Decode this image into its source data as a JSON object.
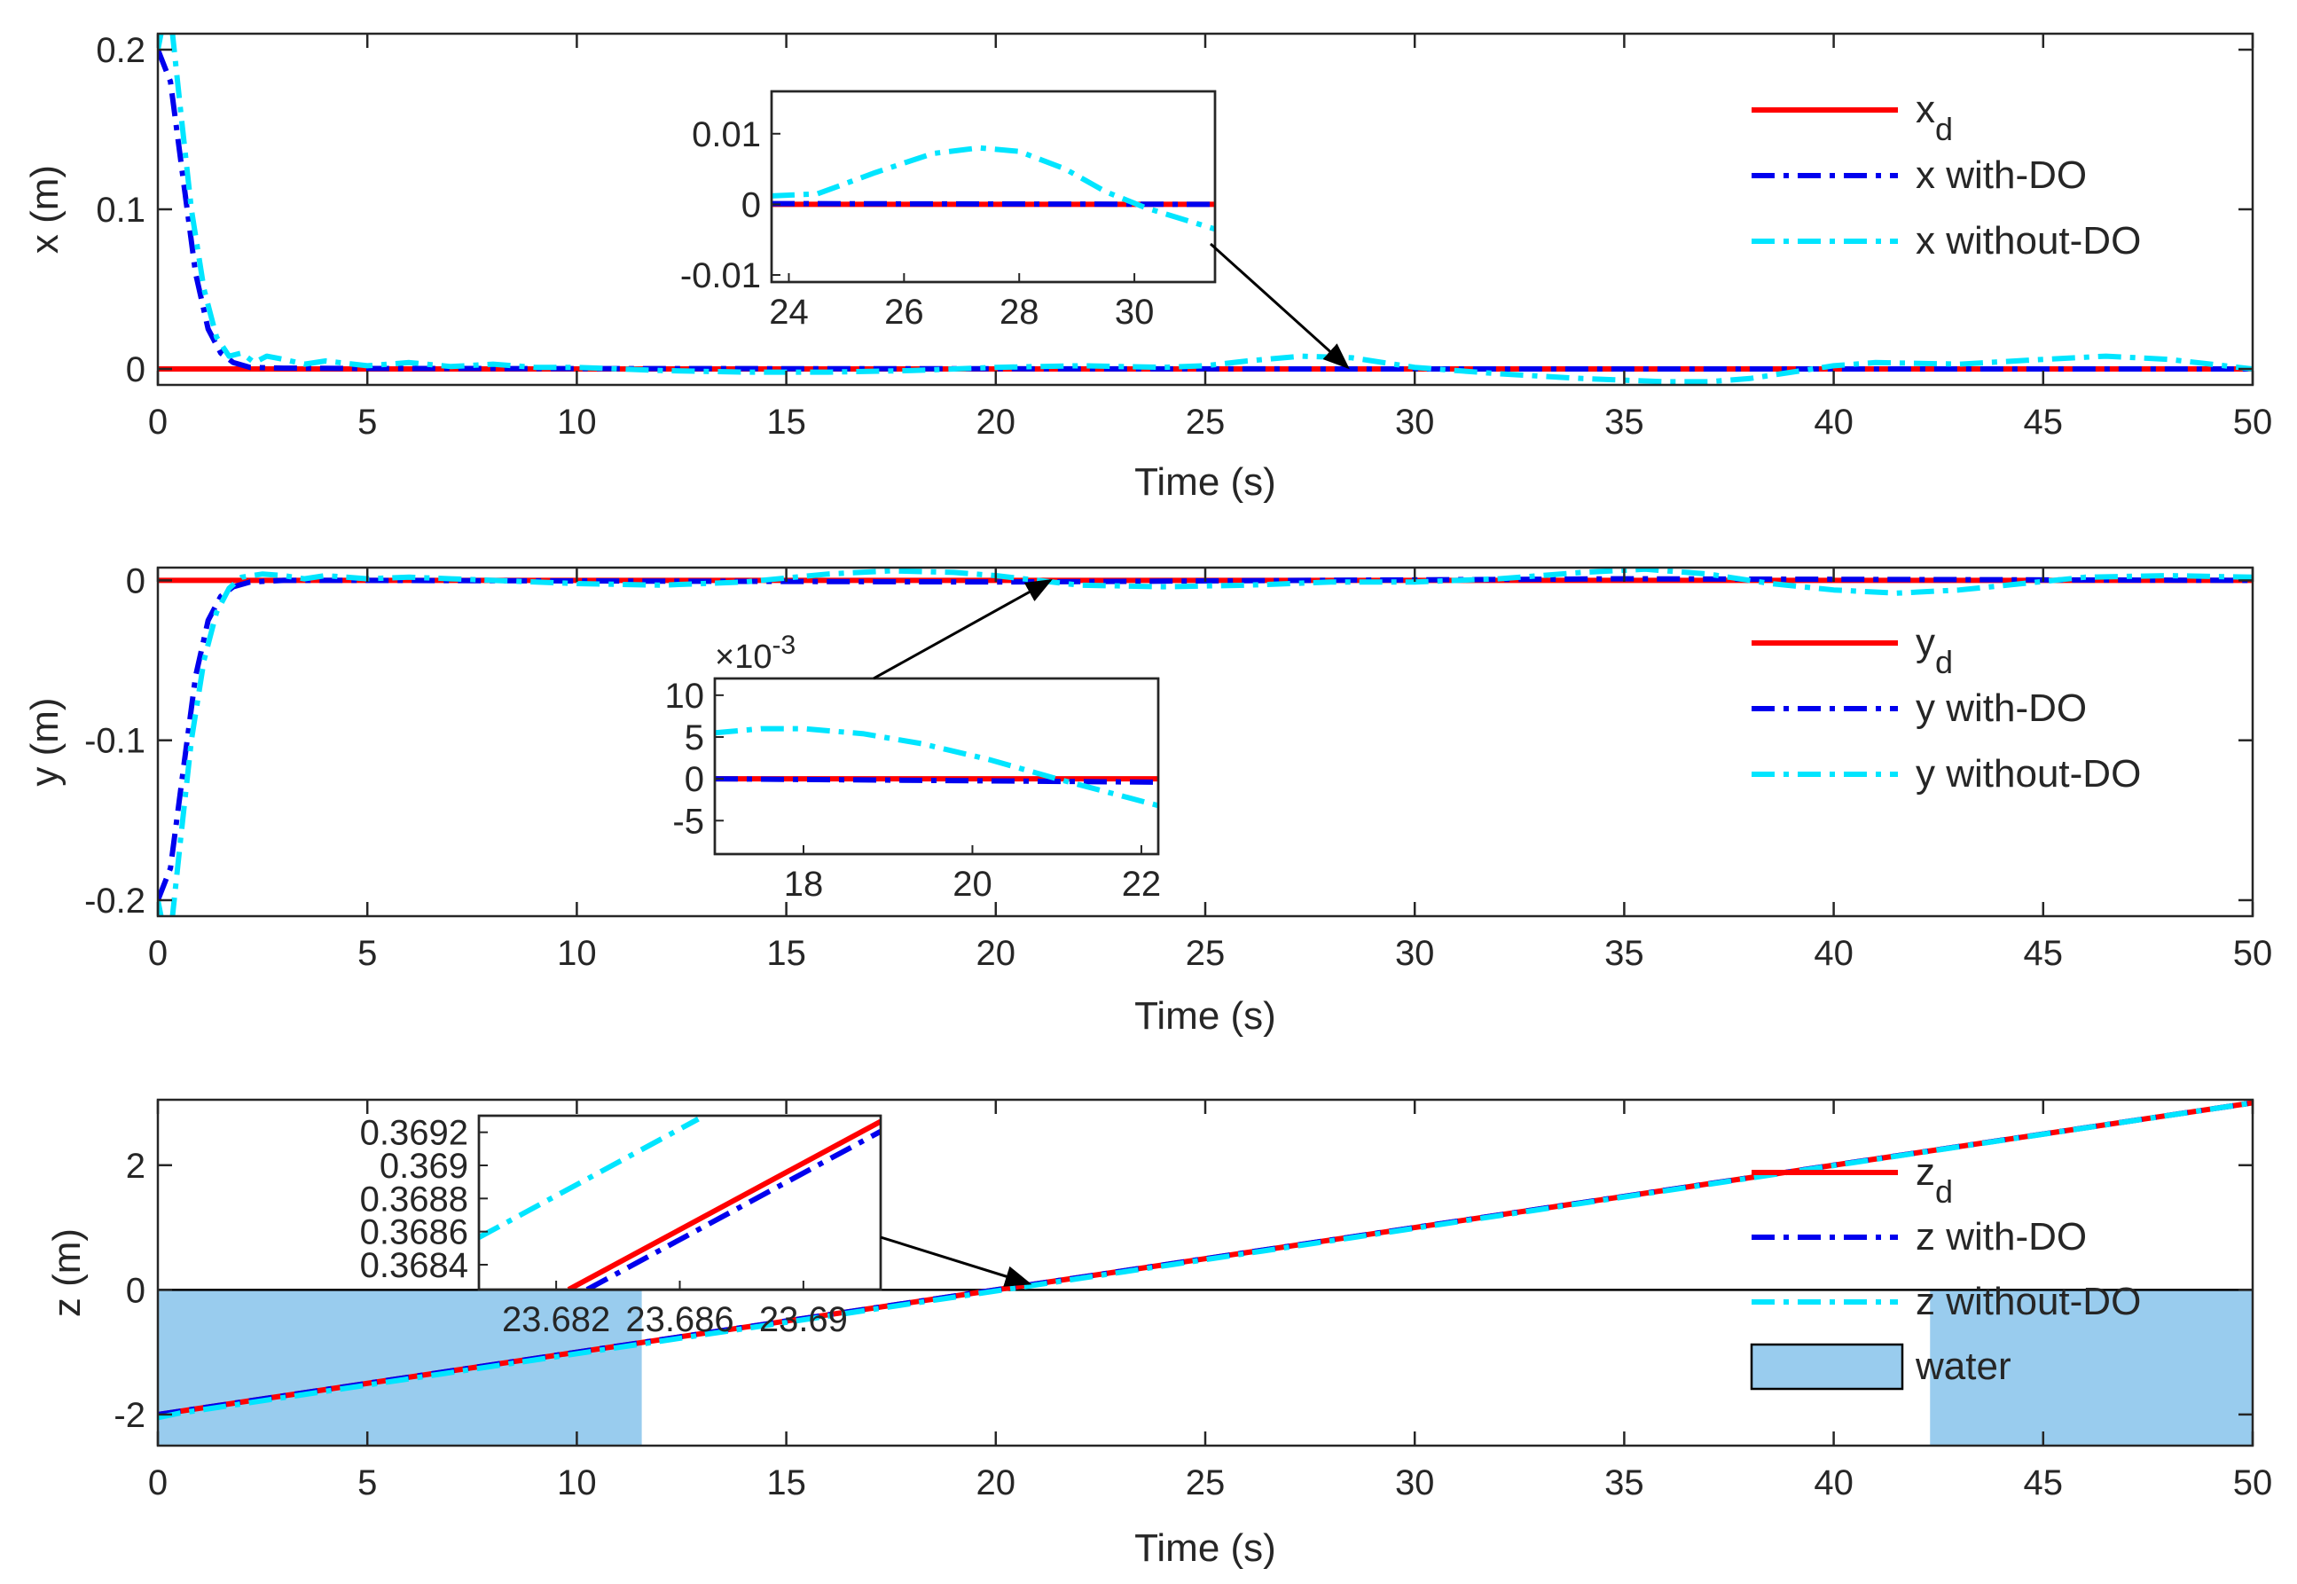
{
  "colors": {
    "desired": "#ff0000",
    "with_do": "#0000ee",
    "without_do": "#00e5ff",
    "water": "#99ccee",
    "axis": "#262626"
  },
  "chart_data": [
    {
      "type": "line",
      "xlabel": "Time (s)",
      "ylabel": "x (m)",
      "xlim": [
        0,
        50
      ],
      "ylim": [
        -0.01,
        0.21
      ],
      "xticks": [
        0,
        5,
        10,
        15,
        20,
        25,
        30,
        35,
        40,
        45,
        50
      ],
      "xtick_labels": [
        "0",
        "5",
        "10",
        "15",
        "20",
        "25",
        "30",
        "35",
        "40",
        "45",
        "50"
      ],
      "yticks": [
        0,
        0.1,
        0.2
      ],
      "ytick_labels": [
        "0",
        "0.1",
        "0.2"
      ],
      "legend": {
        "position": "top-right",
        "entries": [
          {
            "label": "x",
            "subscript": "d",
            "style": "desired"
          },
          {
            "label": "x with-DO",
            "style": "with_do"
          },
          {
            "label": "x without-DO",
            "style": "without_do"
          }
        ]
      },
      "series": [
        {
          "name": "xd",
          "style": "desired",
          "x": [
            0,
            50
          ],
          "y": [
            0,
            0
          ]
        },
        {
          "name": "x with-DO",
          "style": "with_do",
          "x": [
            0,
            0.3,
            0.6,
            0.9,
            1.2,
            1.5,
            1.8,
            2.2,
            3,
            5,
            10,
            20,
            30,
            40,
            50
          ],
          "y": [
            0.2,
            0.18,
            0.12,
            0.06,
            0.025,
            0.01,
            0.004,
            0.001,
            0.0005,
            0.0003,
            0.0002,
            0.0001,
            0,
            0,
            0
          ]
        },
        {
          "name": "x without-DO",
          "style": "without_do",
          "x": [
            0,
            0.15,
            0.35,
            0.55,
            0.8,
            1.1,
            1.4,
            1.7,
            2.0,
            2.3,
            2.6,
            3.0,
            3.5,
            4,
            5,
            6,
            7,
            8,
            9,
            10,
            12,
            14,
            16,
            18,
            20,
            22,
            24,
            25,
            26,
            27.3,
            28.5,
            30,
            32,
            34,
            36,
            37,
            38,
            39,
            40,
            41,
            43,
            45,
            46.5,
            48,
            50
          ],
          "y": [
            0.2,
            0.22,
            0.21,
            0.16,
            0.1,
            0.05,
            0.02,
            0.008,
            0.01,
            0.004,
            0.008,
            0.006,
            0.003,
            0.005,
            0.002,
            0.004,
            0.0015,
            0.003,
            0.001,
            0.001,
            -0.001,
            -0.002,
            -0.002,
            -0.001,
            0.001,
            0.002,
            0.001,
            0.002,
            0.005,
            0.008,
            0.007,
            0.001,
            -0.003,
            -0.006,
            -0.008,
            -0.008,
            -0.006,
            -0.002,
            0.002,
            0.004,
            0.003,
            0.006,
            0.008,
            0.006,
            0
          ]
        }
      ],
      "inset": {
        "xlim": [
          23.7,
          31.4
        ],
        "ylim": [
          -0.011,
          0.016
        ],
        "xticks": [
          24,
          26,
          28,
          30
        ],
        "xtick_labels": [
          "24",
          "26",
          "28",
          "30"
        ],
        "yticks": [
          -0.01,
          0,
          0.01
        ],
        "ytick_labels": [
          "-0.01",
          "0",
          "0.01"
        ],
        "series": [
          {
            "style": "desired",
            "x": [
              23.7,
              31.4
            ],
            "y": [
              0,
              0
            ]
          },
          {
            "style": "with_do",
            "x": [
              23.7,
              31.4
            ],
            "y": [
              0.0001,
              0
            ]
          },
          {
            "style": "without_do",
            "x": [
              23.7,
              24.5,
              25.5,
              26.5,
              27.3,
              28,
              28.8,
              29.5,
              30.2,
              31,
              31.4
            ],
            "y": [
              0.0012,
              0.0015,
              0.0045,
              0.0072,
              0.008,
              0.0075,
              0.005,
              0.0018,
              -0.0005,
              -0.0025,
              -0.0035
            ]
          }
        ],
        "arrow_target": {
          "x": 28.4,
          "y": 0.001
        }
      }
    },
    {
      "type": "line",
      "xlabel": "Time (s)",
      "ylabel": "y (m)",
      "xlim": [
        0,
        50
      ],
      "ylim": [
        -0.21,
        0.008
      ],
      "xticks": [
        0,
        5,
        10,
        15,
        20,
        25,
        30,
        35,
        40,
        45,
        50
      ],
      "xtick_labels": [
        "0",
        "5",
        "10",
        "15",
        "20",
        "25",
        "30",
        "35",
        "40",
        "45",
        "50"
      ],
      "yticks": [
        -0.2,
        -0.1,
        0
      ],
      "ytick_labels": [
        "-0.2",
        "-0.1",
        "0"
      ],
      "legend": {
        "position": "right",
        "entries": [
          {
            "label": "y",
            "subscript": "d",
            "style": "desired"
          },
          {
            "label": "y with-DO",
            "style": "with_do"
          },
          {
            "label": "y without-DO",
            "style": "without_do"
          }
        ]
      },
      "series": [
        {
          "name": "yd",
          "style": "desired",
          "x": [
            0,
            50
          ],
          "y": [
            0,
            0
          ]
        },
        {
          "name": "y with-DO",
          "style": "with_do",
          "x": [
            0,
            0.3,
            0.6,
            0.9,
            1.2,
            1.5,
            1.8,
            2.2,
            3,
            5,
            20,
            35,
            50
          ],
          "y": [
            -0.2,
            -0.18,
            -0.12,
            -0.06,
            -0.025,
            -0.01,
            -0.004,
            -0.001,
            0,
            0,
            -0.001,
            0.001,
            0
          ]
        },
        {
          "name": "y without-DO",
          "style": "without_do",
          "x": [
            0,
            0.15,
            0.35,
            0.55,
            0.8,
            1.1,
            1.4,
            1.7,
            2.0,
            2.5,
            3,
            3.5,
            4,
            5,
            6,
            7,
            8,
            10,
            12,
            14,
            16,
            17.5,
            19,
            20,
            21,
            22,
            24,
            26,
            28,
            30,
            32,
            34,
            35.5,
            37,
            38.5,
            40,
            41.5,
            43,
            44.5,
            46,
            48,
            50
          ],
          "y": [
            -0.2,
            -0.22,
            -0.21,
            -0.16,
            -0.1,
            -0.05,
            -0.02,
            -0.005,
            0.002,
            0.004,
            0.003,
            0.001,
            0.003,
            0.001,
            0.002,
            0.001,
            0,
            -0.002,
            -0.003,
            -0.001,
            0.004,
            0.006,
            0.005,
            0.003,
            0,
            -0.003,
            -0.004,
            -0.003,
            -0.001,
            -0.001,
            0.001,
            0.005,
            0.007,
            0.004,
            -0.002,
            -0.006,
            -0.008,
            -0.006,
            -0.002,
            0.002,
            0.003,
            0.002
          ]
        }
      ],
      "inset": {
        "exponent_label": "×10",
        "exponent": "-3",
        "xlim": [
          16.95,
          22.2
        ],
        "ylim": [
          -0.009,
          0.012
        ],
        "xticks": [
          18,
          20,
          22
        ],
        "xtick_labels": [
          "18",
          "20",
          "22"
        ],
        "yticks": [
          -0.005,
          0,
          0.005,
          0.01
        ],
        "ytick_labels": [
          "-5",
          "0",
          "5",
          "10"
        ],
        "series": [
          {
            "style": "desired",
            "x": [
              16.95,
              22.2
            ],
            "y": [
              0,
              0
            ]
          },
          {
            "style": "with_do",
            "x": [
              16.95,
              22.2
            ],
            "y": [
              0,
              -0.0004
            ]
          },
          {
            "style": "without_do",
            "x": [
              16.95,
              17.5,
              18,
              18.7,
              19.4,
              20.2,
              21,
              21.6,
              22.2
            ],
            "y": [
              0.0055,
              0.006,
              0.006,
              0.0054,
              0.0042,
              0.0023,
              0,
              -0.0016,
              -0.0032
            ]
          }
        ],
        "arrow_target": {
          "x": 21.3,
          "y": 0.0
        }
      }
    },
    {
      "type": "line",
      "xlabel": "Time (s)",
      "ylabel": "z (m)",
      "xlim": [
        0,
        50
      ],
      "ylim": [
        -2.5,
        3.05
      ],
      "xticks": [
        0,
        5,
        10,
        15,
        20,
        25,
        30,
        35,
        40,
        45,
        50
      ],
      "xtick_labels": [
        "0",
        "5",
        "10",
        "15",
        "20",
        "25",
        "30",
        "35",
        "40",
        "45",
        "50"
      ],
      "yticks": [
        -2,
        0,
        2
      ],
      "ytick_labels": [
        "-2",
        "0",
        "2"
      ],
      "water_regions": [
        {
          "x0": 0,
          "x1": 11.55,
          "y0": -2.5,
          "y1": 0
        },
        {
          "x0": 42.3,
          "x1": 50,
          "y0": -2.5,
          "y1": 0
        }
      ],
      "legend": {
        "position": "right",
        "entries": [
          {
            "label": "z",
            "subscript": "d",
            "style": "desired"
          },
          {
            "label": "z with-DO",
            "style": "with_do"
          },
          {
            "label": "z without-DO",
            "style": "without_do"
          },
          {
            "label": "water",
            "style": "water"
          }
        ]
      },
      "series": [
        {
          "name": "zd",
          "style": "desired",
          "x": [
            0,
            50
          ],
          "y": [
            -2,
            3
          ]
        },
        {
          "name": "z with-DO",
          "style": "with_do",
          "x": [
            0,
            50
          ],
          "y": [
            -2,
            3
          ]
        },
        {
          "name": "z without-DO",
          "style": "without_do",
          "x": [
            0,
            0.5,
            50
          ],
          "y": [
            -2.05,
            -1.98,
            3
          ]
        }
      ],
      "inset": {
        "xlim": [
          23.6795,
          23.6925
        ],
        "ylim": [
          0.36825,
          0.3693
        ],
        "xticks": [
          23.682,
          23.686,
          23.69
        ],
        "xtick_labels": [
          "23.682",
          "23.686",
          "23.69"
        ],
        "yticks": [
          0.3684,
          0.3686,
          0.3688,
          0.369,
          0.3692
        ],
        "ytick_labels": [
          "0.3684",
          "0.3686",
          "0.3688",
          "0.369",
          "0.3692"
        ],
        "series": [
          {
            "style": "desired",
            "x": [
              23.6824,
              23.6925
            ],
            "y": [
              0.36825,
              0.369265
            ]
          },
          {
            "style": "with_do",
            "x": [
              23.683,
              23.6925
            ],
            "y": [
              0.36825,
              0.369205
            ]
          },
          {
            "style": "without_do",
            "x": [
              23.6795,
              23.6866
            ],
            "y": [
              0.368565,
              0.36928
            ]
          }
        ],
        "arrow_target": {
          "x": 20.8,
          "y": 0.1
        }
      }
    }
  ]
}
